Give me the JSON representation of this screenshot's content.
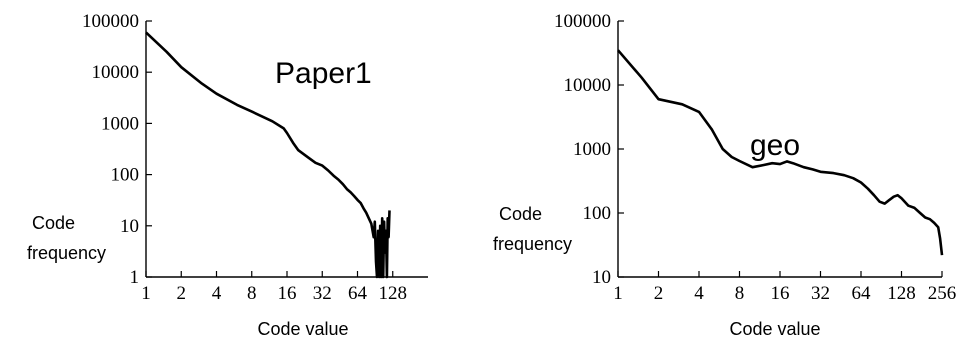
{
  "chart_data": [
    {
      "type": "line",
      "title": "Paper1",
      "xlabel": "Code value",
      "ylabel": [
        "Code",
        "frequency"
      ],
      "x_scale": "log2",
      "y_scale": "log10",
      "xlim": [
        1,
        256
      ],
      "ylim": [
        1,
        100000
      ],
      "x_ticks": [
        1,
        2,
        4,
        8,
        16,
        32,
        64,
        128
      ],
      "x_tick_labels": [
        "1",
        "2",
        "4",
        "8",
        "16",
        "32",
        "64",
        "128"
      ],
      "y_ticks": [
        1,
        10,
        100,
        1000,
        10000,
        100000
      ],
      "y_tick_labels": [
        "1",
        "10",
        "100",
        "1000",
        "10000",
        "100000"
      ],
      "grid": false,
      "series": [
        {
          "color": "#000000",
          "x": [
            1,
            1.5,
            2,
            3,
            4,
            6,
            8,
            12,
            15,
            16,
            18,
            20,
            24,
            28,
            32,
            36,
            40,
            44,
            48,
            52,
            56,
            60,
            64,
            68,
            72,
            76,
            80,
            84,
            88,
            90,
            92,
            94,
            96,
            98,
            100,
            102,
            104,
            106,
            108,
            110,
            112,
            114,
            116,
            118,
            120
          ],
          "y": [
            60000,
            25000,
            12500,
            6000,
            3800,
            2300,
            1700,
            1100,
            800,
            650,
            420,
            300,
            220,
            170,
            150,
            120,
            95,
            80,
            65,
            52,
            45,
            38,
            32,
            28,
            22,
            18,
            14,
            11,
            6,
            12,
            2,
            1,
            8,
            1,
            10,
            1,
            14,
            1,
            12,
            3,
            8,
            1,
            14,
            6,
            20
          ]
        }
      ]
    },
    {
      "type": "line",
      "title": "geo",
      "xlabel": "Code value",
      "ylabel": [
        "Code",
        "frequency"
      ],
      "x_scale": "log2",
      "y_scale": "log10",
      "xlim": [
        1,
        256
      ],
      "ylim": [
        10,
        100000
      ],
      "x_ticks": [
        1,
        2,
        4,
        8,
        16,
        32,
        64,
        128,
        256
      ],
      "x_tick_labels": [
        "1",
        "2",
        "4",
        "8",
        "16",
        "32",
        "64",
        "128",
        "256"
      ],
      "y_ticks": [
        10,
        100,
        1000,
        10000,
        100000
      ],
      "y_tick_labels": [
        "10",
        "100",
        "1000",
        "10000",
        "100000"
      ],
      "grid": false,
      "series": [
        {
          "color": "#000000",
          "x": [
            1,
            1.5,
            2,
            3,
            4,
            5,
            6,
            7,
            8,
            10,
            12,
            14,
            16,
            18,
            20,
            24,
            28,
            32,
            40,
            48,
            56,
            64,
            72,
            80,
            88,
            96,
            104,
            112,
            120,
            128,
            144,
            160,
            176,
            192,
            208,
            224,
            240,
            248,
            256
          ],
          "y": [
            35000,
            13000,
            6000,
            5000,
            3800,
            2000,
            1000,
            750,
            650,
            520,
            560,
            600,
            580,
            640,
            600,
            520,
            480,
            440,
            420,
            390,
            350,
            300,
            240,
            190,
            150,
            140,
            160,
            180,
            190,
            170,
            130,
            120,
            100,
            85,
            80,
            70,
            60,
            40,
            22
          ]
        }
      ]
    }
  ]
}
